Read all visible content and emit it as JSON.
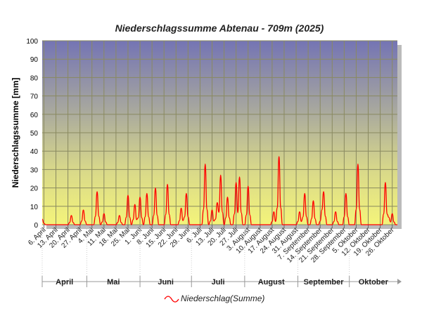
{
  "chart_data": {
    "type": "line",
    "title": "Niederschlagssumme Abtenau - 709m (2025)",
    "ylabel": "Niederschlagssumme [mm]",
    "xlabel": "",
    "ylim": [
      0,
      100
    ],
    "yticks": [
      0,
      10,
      20,
      30,
      40,
      50,
      60,
      70,
      80,
      90,
      100
    ],
    "grid": true,
    "xlim": [
      "04-05",
      "10-29"
    ],
    "xtick_dates": [
      "04-06",
      "04-13",
      "04-20",
      "04-27",
      "05-04",
      "05-11",
      "05-18",
      "05-25",
      "06-01",
      "06-08",
      "06-15",
      "06-22",
      "06-29",
      "07-06",
      "07-13",
      "07-20",
      "07-27",
      "08-03",
      "08-10",
      "08-17",
      "08-24",
      "08-31",
      "09-07",
      "09-14",
      "09-21",
      "09-28",
      "10-05",
      "10-12",
      "10-19",
      "10-26"
    ],
    "xtick_labels": [
      "6. April",
      "13. April",
      "20. April",
      "27. April",
      "4. Mai",
      "11. Mai",
      "18. Mai",
      "25. Mai",
      "1. Juni",
      "8. Juni",
      "15. Juni",
      "22. Juni",
      "29. Juni",
      "6. Juli",
      "13. Juli",
      "20. Juli",
      "27. Juli",
      "3. August",
      "10. August",
      "17. August",
      "24. August",
      "31. August",
      "7. September",
      "14. September",
      "21. September",
      "28. September",
      "5. Oktober",
      "12. Oktober",
      "19. Oktober",
      "26. Oktober"
    ],
    "months": [
      {
        "label": "April",
        "start": "04-05",
        "end": "04-30"
      },
      {
        "label": "Mai",
        "start": "05-01",
        "end": "05-31"
      },
      {
        "label": "Juni",
        "start": "06-01",
        "end": "06-30"
      },
      {
        "label": "Juli",
        "start": "07-01",
        "end": "07-31"
      },
      {
        "label": "August",
        "start": "08-01",
        "end": "08-31"
      },
      {
        "label": "September",
        "start": "09-01",
        "end": "09-30"
      },
      {
        "label": "Oktober",
        "start": "10-01",
        "end": "10-29"
      }
    ],
    "series": [
      {
        "name": "Niederschlag(Summe)",
        "color": "#ff0000",
        "points": [
          [
            "04-05",
            3
          ],
          [
            "04-22",
            5
          ],
          [
            "04-29",
            8
          ],
          [
            "05-07",
            18
          ],
          [
            "05-11",
            6
          ],
          [
            "05-20",
            5
          ],
          [
            "05-25",
            16
          ],
          [
            "05-29",
            11
          ],
          [
            "06-01",
            15
          ],
          [
            "06-05",
            17
          ],
          [
            "06-10",
            20
          ],
          [
            "06-17",
            22
          ],
          [
            "06-25",
            9
          ],
          [
            "06-28",
            17
          ],
          [
            "07-09",
            33
          ],
          [
            "07-13",
            8
          ],
          [
            "07-16",
            12
          ],
          [
            "07-18",
            27
          ],
          [
            "07-22",
            15
          ],
          [
            "07-27",
            23
          ],
          [
            "07-29",
            26
          ],
          [
            "08-03",
            21
          ],
          [
            "08-18",
            7
          ],
          [
            "08-21",
            37
          ],
          [
            "09-02",
            7
          ],
          [
            "09-05",
            17
          ],
          [
            "09-10",
            13
          ],
          [
            "09-15",
            8
          ],
          [
            "09-16",
            18
          ],
          [
            "09-23",
            7
          ],
          [
            "09-29",
            17
          ],
          [
            "10-06",
            33
          ],
          [
            "10-22",
            23
          ],
          [
            "10-24",
            4
          ],
          [
            "10-26",
            6
          ]
        ]
      }
    ],
    "legend": "bottom-center"
  }
}
